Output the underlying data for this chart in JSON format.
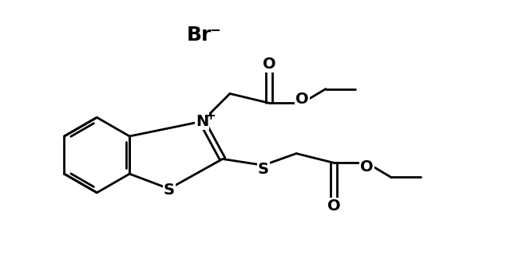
{
  "background_color": "#ffffff",
  "line_color": "#000000",
  "line_width": 2.0,
  "figsize": [
    6.4,
    3.35
  ],
  "dpi": 100,
  "atoms": {
    "N_label": "N",
    "N_charge": "+",
    "S1_label": "S",
    "S2_label": "S",
    "O_labels": "O",
    "Br_label": "Br",
    "Br_charge": "-"
  },
  "font_size_atom": 14,
  "font_size_charge": 10,
  "font_size_br": 15
}
